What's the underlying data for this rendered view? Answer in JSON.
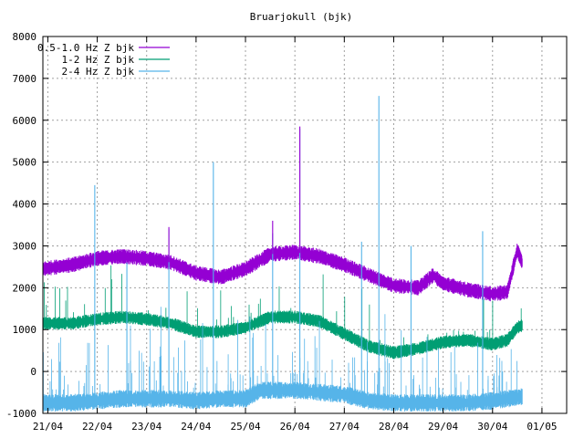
{
  "chart_data": {
    "type": "line",
    "title": "Bruarjokull (bjk)",
    "xlabel": "",
    "ylabel": "",
    "ylim": [
      -1000,
      8000
    ],
    "yticks": [
      -1000,
      0,
      1000,
      2000,
      3000,
      4000,
      5000,
      6000,
      7000,
      8000
    ],
    "xlim": [
      20.9,
      31.5
    ],
    "xticks": [
      {
        "label": "21/04",
        "day": 21
      },
      {
        "label": "22/04",
        "day": 22
      },
      {
        "label": "23/04",
        "day": 23
      },
      {
        "label": "24/04",
        "day": 24
      },
      {
        "label": "25/04",
        "day": 25
      },
      {
        "label": "26/04",
        "day": 26
      },
      {
        "label": "27/04",
        "day": 27
      },
      {
        "label": "28/04",
        "day": 28
      },
      {
        "label": "29/04",
        "day": 29
      },
      {
        "label": "30/04",
        "day": 30
      },
      {
        "label": "01/05",
        "day": 31
      }
    ],
    "grid": true,
    "legend_position": "top-left",
    "series": [
      {
        "name": "0.5-1.0 Hz Z bjk",
        "color": "#9400d3",
        "noise": 130,
        "x": [
          20.9,
          21.5,
          22.0,
          22.5,
          23.0,
          23.5,
          24.0,
          24.5,
          25.0,
          25.5,
          26.0,
          26.5,
          27.0,
          27.5,
          28.0,
          28.5,
          28.8,
          29.0,
          29.5,
          30.0,
          30.3,
          30.5,
          30.6
        ],
        "values": [
          2450,
          2550,
          2700,
          2750,
          2700,
          2600,
          2350,
          2250,
          2450,
          2800,
          2850,
          2750,
          2550,
          2300,
          2050,
          2000,
          2300,
          2100,
          1950,
          1850,
          1900,
          2900,
          2600
        ]
      },
      {
        "name": "1-2 Hz Z bjk",
        "color": "#009e73",
        "noise": 110,
        "x": [
          20.9,
          21.5,
          22.0,
          22.5,
          23.0,
          23.5,
          24.0,
          24.5,
          25.0,
          25.5,
          26.0,
          26.5,
          27.0,
          27.5,
          28.0,
          28.5,
          29.0,
          29.5,
          30.0,
          30.3,
          30.5,
          30.6
        ],
        "values": [
          1150,
          1150,
          1250,
          1300,
          1250,
          1150,
          950,
          950,
          1050,
          1300,
          1300,
          1200,
          900,
          600,
          450,
          550,
          700,
          750,
          650,
          750,
          1050,
          1100
        ]
      },
      {
        "name": "2-4 Hz Z bjk",
        "color": "#56b4e9",
        "noise": 150,
        "x": [
          20.9,
          21.5,
          22.0,
          22.5,
          23.0,
          23.5,
          24.0,
          24.5,
          25.0,
          25.3,
          25.5,
          26.0,
          26.5,
          27.0,
          27.5,
          28.0,
          28.5,
          29.0,
          29.5,
          30.0,
          30.3,
          30.6
        ],
        "values": [
          -750,
          -750,
          -700,
          -650,
          -650,
          -650,
          -700,
          -650,
          -650,
          -450,
          -450,
          -450,
          -500,
          -550,
          -700,
          -750,
          -750,
          -750,
          -750,
          -700,
          -650,
          -600
        ]
      }
    ],
    "spikes": [
      {
        "series": 2,
        "x": 21.95,
        "y": 4450
      },
      {
        "series": 2,
        "x": 24.35,
        "y": 5000
      },
      {
        "series": 2,
        "x": 26.1,
        "y": 5800
      },
      {
        "series": 2,
        "x": 27.7,
        "y": 6580
      },
      {
        "series": 2,
        "x": 23.45,
        "y": 3400
      },
      {
        "series": 2,
        "x": 25.55,
        "y": 3300
      },
      {
        "series": 2,
        "x": 29.8,
        "y": 3350
      },
      {
        "series": 2,
        "x": 27.35,
        "y": 3100
      },
      {
        "series": 2,
        "x": 28.35,
        "y": 3000
      },
      {
        "series": 2,
        "x": 22.6,
        "y": 2600
      },
      {
        "series": 0,
        "x": 23.45,
        "y": 3450
      },
      {
        "series": 0,
        "x": 25.55,
        "y": 3600
      },
      {
        "series": 0,
        "x": 26.1,
        "y": 5850
      }
    ]
  }
}
